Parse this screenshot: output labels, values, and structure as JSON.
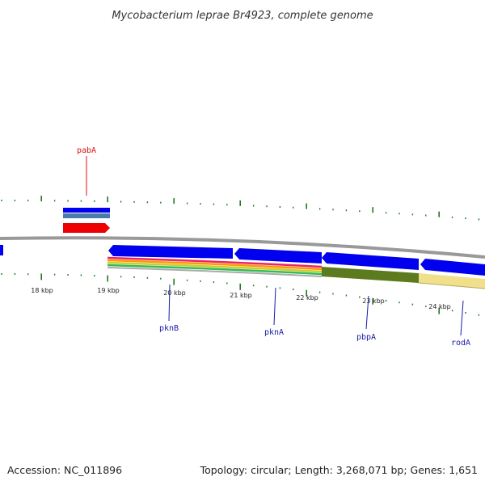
{
  "title": "Mycobacterium leprae Br4923, complete genome",
  "footer": {
    "accession": "Accession: NC_011896",
    "summary": "Topology: circular; Length: 3,268,071 bp; Genes: 1,651"
  },
  "scale": {
    "ticks": [
      "18 kbp",
      "19 kbp",
      "20 kbp",
      "21 kbp",
      "22 kbp",
      "23 kbp",
      "24 kbp"
    ]
  },
  "genes": [
    {
      "name": "pabA",
      "color": "#dd1111"
    },
    {
      "name": "pknB",
      "color": "#1a1aa6"
    },
    {
      "name": "pknA",
      "color": "#1a1aa6"
    },
    {
      "name": "pbpA",
      "color": "#1a1aa6"
    },
    {
      "name": "rodA",
      "color": "#1a1aa6"
    }
  ],
  "colors": {
    "tick": "#1e7a1e",
    "backbone": "#888888",
    "forward_gene": "#0000ee",
    "reverse_gene": "#ee0000",
    "steel": "#4a7aa6",
    "olive": "#5c7a1e",
    "khaki": "#f0e08c"
  }
}
